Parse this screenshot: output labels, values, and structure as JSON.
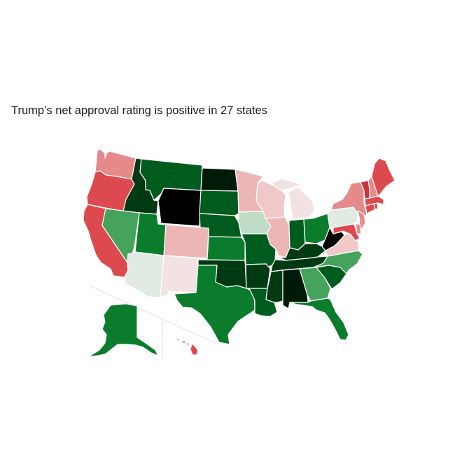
{
  "title": "Trump’s net approval rating is positive in 27 states",
  "legend_scale": {
    "strong_negative": "#dc4a4f",
    "negative": "#e6898b",
    "slight_negative": "#edb6b6",
    "near_zero_negative": "#f3e2e2",
    "near_zero_positive": "#dfebe3",
    "slight_positive": "#bfdcc7",
    "moderate_positive": "#45a35c",
    "positive": "#0a7c2c",
    "strong_positive": "#005c1e",
    "very_strong_positive": "#003a12",
    "max_positive": "#000000"
  },
  "states": [
    {
      "id": "WA",
      "color": "#e6898b"
    },
    {
      "id": "OR",
      "color": "#dc4a4f"
    },
    {
      "id": "CA",
      "color": "#dc4a4f"
    },
    {
      "id": "ID",
      "color": "#003a12"
    },
    {
      "id": "NV",
      "color": "#45a35c"
    },
    {
      "id": "MT",
      "color": "#005c1e"
    },
    {
      "id": "WY",
      "color": "#000000"
    },
    {
      "id": "UT",
      "color": "#0a7c2c"
    },
    {
      "id": "AZ",
      "color": "#dfebe3"
    },
    {
      "id": "CO",
      "color": "#edb6b6"
    },
    {
      "id": "NM",
      "color": "#f3e2e2"
    },
    {
      "id": "ND",
      "color": "#001a08"
    },
    {
      "id": "SD",
      "color": "#005c1e"
    },
    {
      "id": "NE",
      "color": "#005c1e"
    },
    {
      "id": "KS",
      "color": "#0a7c2c"
    },
    {
      "id": "OK",
      "color": "#003a12"
    },
    {
      "id": "TX",
      "color": "#0a7c2c"
    },
    {
      "id": "MN",
      "color": "#edb6b6"
    },
    {
      "id": "IA",
      "color": "#bfdcc7"
    },
    {
      "id": "MO",
      "color": "#005c1e"
    },
    {
      "id": "AR",
      "color": "#003a12"
    },
    {
      "id": "LA",
      "color": "#005c1e"
    },
    {
      "id": "WI",
      "color": "#f0c8c8"
    },
    {
      "id": "IL",
      "color": "#edb6b6"
    },
    {
      "id": "MI",
      "color": "#f3e2e2"
    },
    {
      "id": "IN",
      "color": "#005c1e"
    },
    {
      "id": "OH",
      "color": "#0a7c2c"
    },
    {
      "id": "KY",
      "color": "#003a12"
    },
    {
      "id": "TN",
      "color": "#003a12"
    },
    {
      "id": "MS",
      "color": "#003a12"
    },
    {
      "id": "AL",
      "color": "#001a08"
    },
    {
      "id": "GA",
      "color": "#45a35c"
    },
    {
      "id": "FL",
      "color": "#0a7c2c"
    },
    {
      "id": "SC",
      "color": "#005c1e"
    },
    {
      "id": "NC",
      "color": "#45a35c"
    },
    {
      "id": "VA",
      "color": "#f0c8c8"
    },
    {
      "id": "WV",
      "color": "#000000"
    },
    {
      "id": "PA",
      "color": "#dfebe3"
    },
    {
      "id": "NY",
      "color": "#e6898b"
    },
    {
      "id": "NJ",
      "color": "#e6898b"
    },
    {
      "id": "DE",
      "color": "#e6898b"
    },
    {
      "id": "MD",
      "color": "#dc4a4f"
    },
    {
      "id": "CT",
      "color": "#dc4a4f"
    },
    {
      "id": "RI",
      "color": "#dc4a4f"
    },
    {
      "id": "MA",
      "color": "#dc4a4f"
    },
    {
      "id": "VT",
      "color": "#c6343a"
    },
    {
      "id": "NH",
      "color": "#e6898b"
    },
    {
      "id": "ME",
      "color": "#dc4a4f"
    },
    {
      "id": "AK",
      "color": "#0a7c2c"
    },
    {
      "id": "HI",
      "color": "#dc4a4f"
    }
  ]
}
